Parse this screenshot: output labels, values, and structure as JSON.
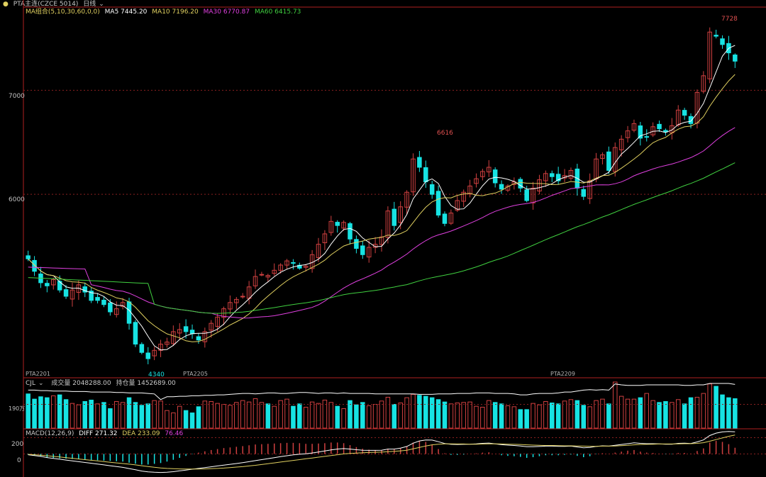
{
  "header": {
    "title": "PTA主连(CZCE 5014)",
    "period": "日线",
    "ma_label": "MA组合(5,10,30,60,0,0)",
    "ma5": "MA5 7445.20",
    "ma10": "MA10 7196.20",
    "ma30": "MA30 6770.87",
    "ma60": "MA60 6415.73"
  },
  "volume_header": {
    "label": "CJL",
    "volume": "成交量 2048288.00",
    "open_interest": "持仓量 1452689.00"
  },
  "macd_header": {
    "label": "MACD(12,26,9)",
    "diff": "DIFF 271.32",
    "dea": "DEA 233.09",
    "macd": "76.46"
  },
  "price_axis": {
    "labels": [
      "7000",
      "6000"
    ]
  },
  "volume_axis": {
    "labels": [
      "190万"
    ]
  },
  "macd_axis": {
    "labels": [
      "200",
      "0"
    ]
  },
  "contracts": [
    "PTA2201",
    "PTA2205",
    "PTA2209"
  ],
  "annotations": {
    "high_1": "6616",
    "high_2": "7728",
    "low_1": "4340"
  },
  "colors": {
    "up": "#d04040",
    "down": "#17e3e3",
    "ma5": "#ffffff",
    "ma10": "#e0d060",
    "ma30": "#e040e0",
    "ma60": "#40d040",
    "axis": "#b02020"
  },
  "chart_data": {
    "type": "candlestick",
    "ylim": [
      4250,
      7800
    ],
    "closes": [
      5380,
      5260,
      5150,
      5120,
      5180,
      5080,
      5020,
      5080,
      5130,
      5060,
      4980,
      4980,
      4940,
      4870,
      4900,
      4960,
      4760,
      4560,
      4480,
      4420,
      4500,
      4560,
      4580,
      4680,
      4700,
      4680,
      4660,
      4600,
      4680,
      4760,
      4820,
      4900,
      4960,
      4990,
      5020,
      5110,
      5210,
      5230,
      5220,
      5270,
      5320,
      5360,
      5340,
      5290,
      5310,
      5420,
      5520,
      5620,
      5740,
      5700,
      5730,
      5570,
      5480,
      5420,
      5490,
      5520,
      5590,
      5840,
      5700,
      5880,
      6020,
      6340,
      6260,
      6120,
      6000,
      5800,
      5720,
      5820,
      5940,
      6020,
      6080,
      6150,
      6220,
      6260,
      6110,
      6050,
      6080,
      6120,
      6060,
      5940,
      6060,
      6140,
      6200,
      6170,
      6130,
      6180,
      6230,
      6060,
      5980,
      6130,
      6340,
      6380,
      6230,
      6450,
      6530,
      6610,
      6680,
      6540,
      6550,
      6650,
      6630,
      6600,
      6660,
      6810,
      6760,
      6680,
      6980,
      7140,
      7560,
      7520,
      7440,
      7360,
      7280
    ],
    "volumes": [
      0.72,
      0.61,
      0.66,
      0.64,
      0.68,
      0.7,
      0.6,
      0.52,
      0.49,
      0.56,
      0.59,
      0.51,
      0.54,
      0.41,
      0.56,
      0.54,
      0.64,
      0.54,
      0.48,
      0.51,
      0.58,
      0.57,
      0.37,
      0.32,
      0.46,
      0.37,
      0.32,
      0.45,
      0.57,
      0.56,
      0.52,
      0.5,
      0.48,
      0.54,
      0.58,
      0.55,
      0.62,
      0.54,
      0.51,
      0.46,
      0.58,
      0.61,
      0.46,
      0.51,
      0.44,
      0.55,
      0.52,
      0.59,
      0.54,
      0.46,
      0.41,
      0.58,
      0.49,
      0.54,
      0.47,
      0.5,
      0.57,
      0.65,
      0.5,
      0.53,
      0.64,
      0.71,
      0.69,
      0.67,
      0.64,
      0.6,
      0.55,
      0.51,
      0.53,
      0.54,
      0.55,
      0.46,
      0.44,
      0.58,
      0.54,
      0.51,
      0.47,
      0.45,
      0.39,
      0.39,
      0.52,
      0.49,
      0.56,
      0.53,
      0.51,
      0.57,
      0.6,
      0.58,
      0.48,
      0.45,
      0.58,
      0.61,
      0.51,
      0.97,
      0.67,
      0.61,
      0.61,
      0.64,
      0.73,
      0.58,
      0.54,
      0.56,
      0.54,
      0.6,
      0.51,
      0.64,
      0.65,
      0.73,
      0.93,
      0.88,
      0.7,
      0.64,
      0.62
    ],
    "open_interest": [
      0.8,
      0.8,
      0.79,
      0.79,
      0.78,
      0.78,
      0.78,
      0.77,
      0.77,
      0.77,
      0.76,
      0.76,
      0.76,
      0.76,
      0.75,
      0.75,
      0.74,
      0.74,
      0.74,
      0.73,
      0.72,
      0.6,
      0.66,
      0.66,
      0.67,
      0.67,
      0.68,
      0.68,
      0.69,
      0.69,
      0.7,
      0.7,
      0.71,
      0.72,
      0.73,
      0.73,
      0.72,
      0.73,
      0.74,
      0.74,
      0.73,
      0.73,
      0.74,
      0.75,
      0.75,
      0.74,
      0.73,
      0.74,
      0.74,
      0.73,
      0.74,
      0.73,
      0.73,
      0.73,
      0.73,
      0.72,
      0.72,
      0.72,
      0.72,
      0.72,
      0.72,
      0.72,
      0.71,
      0.71,
      0.71,
      0.72,
      0.72,
      0.72,
      0.73,
      0.73,
      0.73,
      0.74,
      0.74,
      0.74,
      0.73,
      0.73,
      0.73,
      0.72,
      0.7,
      0.7,
      0.72,
      0.73,
      0.73,
      0.73,
      0.74,
      0.76,
      0.76,
      0.78,
      0.8,
      0.81,
      0.8,
      0.81,
      0.8,
      0.93,
      0.91,
      0.9,
      0.9,
      0.9,
      0.91,
      0.91,
      0.91,
      0.91,
      0.91,
      0.91,
      0.9,
      0.9,
      0.91,
      0.91,
      0.94,
      0.94,
      0.94,
      0.94,
      0.92
    ],
    "macd_diff": [
      -10,
      -20,
      -30,
      -45,
      -55,
      -65,
      -75,
      -85,
      -95,
      -105,
      -115,
      -125,
      -135,
      -145,
      -155,
      -165,
      -180,
      -195,
      -210,
      -220,
      -225,
      -228,
      -225,
      -218,
      -208,
      -198,
      -188,
      -178,
      -168,
      -158,
      -148,
      -138,
      -128,
      -118,
      -108,
      -95,
      -82,
      -70,
      -58,
      -46,
      -34,
      -22,
      -12,
      -4,
      2,
      12,
      24,
      36,
      50,
      60,
      66,
      60,
      52,
      46,
      44,
      44,
      46,
      60,
      60,
      72,
      92,
      132,
      160,
      172,
      170,
      150,
      128,
      118,
      116,
      118,
      120,
      124,
      130,
      134,
      124,
      114,
      108,
      104,
      98,
      88,
      88,
      92,
      96,
      96,
      94,
      94,
      96,
      86,
      76,
      80,
      92,
      100,
      96,
      106,
      116,
      126,
      136,
      130,
      126,
      126,
      124,
      120,
      120,
      130,
      132,
      128,
      148,
      172,
      226,
      256,
      270,
      276,
      271
    ],
    "macd_dea": [
      -5,
      -10,
      -15,
      -22,
      -30,
      -38,
      -46,
      -54,
      -62,
      -70,
      -78,
      -86,
      -94,
      -102,
      -110,
      -118,
      -126,
      -135,
      -145,
      -155,
      -164,
      -172,
      -178,
      -182,
      -184,
      -186,
      -186,
      -186,
      -184,
      -182,
      -178,
      -174,
      -168,
      -162,
      -156,
      -148,
      -140,
      -130,
      -120,
      -110,
      -100,
      -90,
      -80,
      -70,
      -60,
      -50,
      -40,
      -30,
      -20,
      -10,
      0,
      6,
      10,
      14,
      18,
      20,
      22,
      28,
      32,
      38,
      46,
      62,
      80,
      98,
      112,
      120,
      124,
      124,
      122,
      122,
      120,
      120,
      122,
      124,
      124,
      122,
      120,
      118,
      116,
      112,
      108,
      106,
      104,
      104,
      102,
      100,
      100,
      98,
      96,
      94,
      94,
      96,
      96,
      98,
      102,
      106,
      112,
      116,
      118,
      120,
      122,
      122,
      122,
      124,
      126,
      126,
      130,
      138,
      156,
      176,
      196,
      216,
      233
    ]
  }
}
